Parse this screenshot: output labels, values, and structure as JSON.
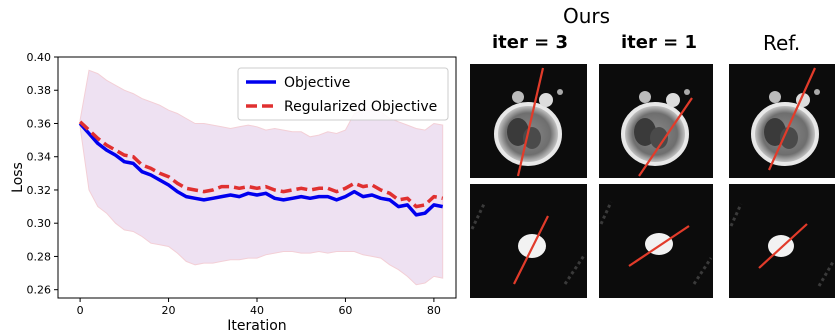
{
  "chart_data": {
    "type": "line",
    "xlabel": "Iteration",
    "ylabel": "Loss",
    "xlim": [
      -5,
      85
    ],
    "ylim": [
      0.255,
      0.4
    ],
    "xticks": [
      0,
      20,
      40,
      60,
      80
    ],
    "yticks": [
      0.26,
      0.28,
      0.3,
      0.32,
      0.34,
      0.36,
      0.38,
      0.4
    ],
    "xtick_labels": [
      "0",
      "20",
      "40",
      "60",
      "80"
    ],
    "ytick_labels": [
      "0.26",
      "0.28",
      "0.30",
      "0.32",
      "0.34",
      "0.36",
      "0.38",
      "0.40"
    ],
    "legend_placement": "top-right",
    "grid": false,
    "series": [
      {
        "name": "Objective",
        "color": "#0000ee",
        "style": "solid",
        "x": [
          0,
          2,
          4,
          6,
          8,
          10,
          12,
          14,
          16,
          18,
          20,
          22,
          24,
          26,
          28,
          30,
          32,
          34,
          36,
          38,
          40,
          42,
          44,
          46,
          48,
          50,
          52,
          54,
          56,
          58,
          60,
          62,
          64,
          66,
          68,
          70,
          72,
          74,
          76,
          78,
          80,
          82
        ],
        "y": [
          0.36,
          0.354,
          0.348,
          0.344,
          0.341,
          0.337,
          0.336,
          0.331,
          0.329,
          0.326,
          0.323,
          0.319,
          0.316,
          0.315,
          0.314,
          0.315,
          0.316,
          0.317,
          0.316,
          0.318,
          0.317,
          0.318,
          0.315,
          0.314,
          0.315,
          0.316,
          0.315,
          0.316,
          0.316,
          0.314,
          0.316,
          0.319,
          0.316,
          0.317,
          0.315,
          0.314,
          0.31,
          0.311,
          0.305,
          0.306,
          0.311,
          0.31
        ]
      },
      {
        "name": "Regularized Objective",
        "color": "#e03030",
        "style": "dashed",
        "x": [
          0,
          2,
          4,
          6,
          8,
          10,
          12,
          14,
          16,
          18,
          20,
          22,
          24,
          26,
          28,
          30,
          32,
          34,
          36,
          38,
          40,
          42,
          44,
          46,
          48,
          50,
          52,
          54,
          56,
          58,
          60,
          62,
          64,
          66,
          68,
          70,
          72,
          74,
          76,
          78,
          80,
          82
        ],
        "y": [
          0.361,
          0.356,
          0.351,
          0.347,
          0.344,
          0.341,
          0.34,
          0.335,
          0.333,
          0.33,
          0.328,
          0.324,
          0.321,
          0.32,
          0.319,
          0.32,
          0.322,
          0.322,
          0.321,
          0.322,
          0.321,
          0.322,
          0.32,
          0.319,
          0.32,
          0.321,
          0.32,
          0.321,
          0.321,
          0.319,
          0.321,
          0.324,
          0.322,
          0.323,
          0.32,
          0.318,
          0.314,
          0.315,
          0.31,
          0.311,
          0.316,
          0.315
        ]
      }
    ],
    "band": {
      "color": "#d9bde3",
      "x": [
        0,
        2,
        4,
        6,
        8,
        10,
        12,
        14,
        16,
        18,
        20,
        22,
        24,
        26,
        28,
        30,
        32,
        34,
        36,
        38,
        40,
        42,
        44,
        46,
        48,
        50,
        52,
        54,
        56,
        58,
        60,
        62,
        64,
        66,
        68,
        70,
        72,
        74,
        76,
        78,
        80,
        82
      ],
      "upper": [
        0.362,
        0.392,
        0.39,
        0.386,
        0.383,
        0.38,
        0.378,
        0.375,
        0.373,
        0.371,
        0.368,
        0.366,
        0.363,
        0.36,
        0.36,
        0.359,
        0.358,
        0.357,
        0.358,
        0.359,
        0.358,
        0.356,
        0.357,
        0.356,
        0.355,
        0.355,
        0.352,
        0.353,
        0.355,
        0.354,
        0.356,
        0.366,
        0.368,
        0.368,
        0.367,
        0.363,
        0.361,
        0.359,
        0.357,
        0.356,
        0.36,
        0.359
      ],
      "lower": [
        0.358,
        0.32,
        0.31,
        0.306,
        0.3,
        0.296,
        0.295,
        0.292,
        0.288,
        0.287,
        0.286,
        0.282,
        0.277,
        0.275,
        0.276,
        0.276,
        0.277,
        0.278,
        0.278,
        0.279,
        0.279,
        0.281,
        0.282,
        0.283,
        0.283,
        0.282,
        0.282,
        0.283,
        0.282,
        0.283,
        0.283,
        0.283,
        0.281,
        0.28,
        0.279,
        0.275,
        0.272,
        0.268,
        0.263,
        0.264,
        0.268,
        0.267
      ]
    }
  },
  "panels": {
    "ours_title": "Ours",
    "columns": [
      "iter = 3",
      "iter = 1",
      "Ref."
    ],
    "line_color": "#e23b2a"
  }
}
